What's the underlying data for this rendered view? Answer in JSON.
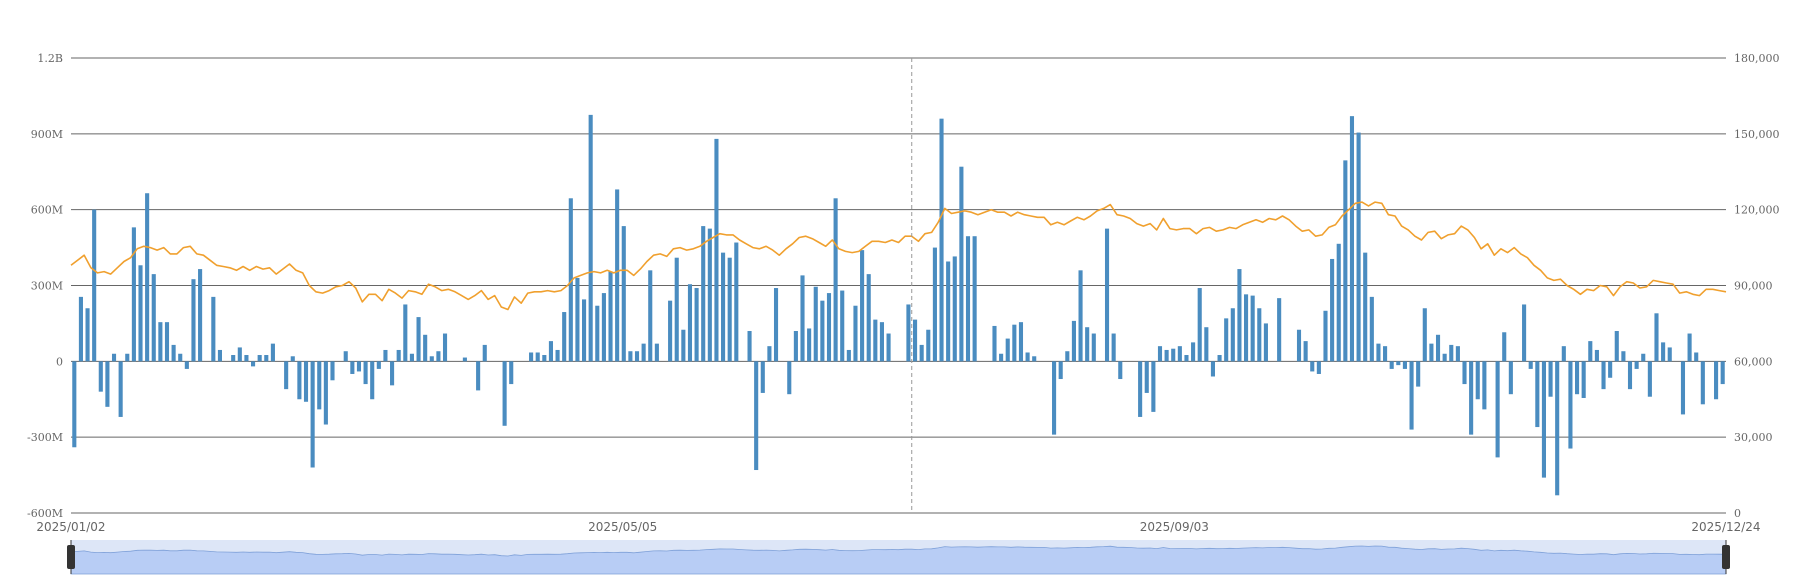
{
  "chart_data": {
    "type": "bar+line",
    "title": "",
    "x_range": [
      "2025/01/02",
      "2025/12/24"
    ],
    "x_tick_labels": [
      "2025/01/02",
      "2025/05/05",
      "2025/09/03",
      "2025/12/24"
    ],
    "y_left": {
      "ticks": [
        1200000000,
        900000000,
        600000000,
        300000000,
        0,
        -300000000,
        -600000000
      ],
      "tick_labels": [
        "1.2B",
        "900M",
        "600M",
        "300M",
        "0",
        "-300M",
        "-600M"
      ],
      "ylim": [
        -600000000,
        1200000000
      ]
    },
    "y_right": {
      "ticks": [
        180000,
        150000,
        120000,
        90000,
        60000,
        30000,
        0
      ],
      "tick_labels": [
        "180,000",
        "150,000",
        "120,000",
        "90,000",
        "60,000",
        "30,000",
        "0"
      ],
      "ylim": [
        0,
        180000
      ]
    },
    "grid": true,
    "legend": "none",
    "crosshair_fraction": 0.508,
    "zoom_range": [
      0,
      1
    ],
    "colors": {
      "bar": "#4a8cc0",
      "line": "#f0a02e",
      "grid": "#666666",
      "zoom_fill": "#b8cdf5",
      "zoom_bg": "#dde6f7",
      "zoom_handle": "#333333"
    },
    "bar_series": {
      "name": "",
      "values_M": [
        -340,
        255,
        210,
        600,
        -120,
        -180,
        30,
        -220,
        30,
        530,
        380,
        665,
        345,
        155,
        155,
        65,
        30,
        -30,
        325,
        365,
        0,
        255,
        45,
        0,
        25,
        55,
        25,
        -20,
        25,
        25,
        70,
        0,
        -110,
        20,
        -150,
        -160,
        -420,
        -190,
        -250,
        -75,
        0,
        40,
        -50,
        -40,
        -90,
        -150,
        -30,
        45,
        -95,
        45,
        225,
        30,
        175,
        105,
        20,
        40,
        110,
        0,
        0,
        15,
        0,
        -115,
        65,
        0,
        0,
        -255,
        -90,
        0,
        0,
        35,
        35,
        25,
        80,
        45,
        195,
        645,
        330,
        245,
        975,
        220,
        270,
        355,
        680,
        535,
        40,
        40,
        70,
        360,
        70,
        0,
        240,
        410,
        125,
        305,
        290,
        535,
        525,
        880,
        430,
        410,
        470,
        0,
        120,
        -430,
        -125,
        60,
        290,
        0,
        -130,
        120,
        340,
        130,
        295,
        240,
        270,
        645,
        280,
        45,
        220,
        440,
        345,
        165,
        155,
        110,
        0,
        0,
        225,
        165,
        65,
        125,
        450,
        960,
        395,
        415,
        770,
        495,
        495,
        0,
        0,
        140,
        30,
        90,
        145,
        155,
        35,
        20,
        0,
        0,
        -290,
        -70,
        40,
        160,
        360,
        135,
        110,
        0,
        525,
        110,
        -70,
        0,
        0,
        -220,
        -125,
        -200,
        60,
        45,
        50,
        60,
        25,
        75,
        290,
        135,
        -60,
        25,
        170,
        210,
        365,
        265,
        260,
        210,
        150,
        0,
        250,
        0,
        0,
        125,
        80,
        -40,
        -50,
        200,
        405,
        465,
        795,
        970,
        905,
        430,
        255,
        70,
        60,
        -30,
        -15,
        -30,
        -270,
        -100,
        210,
        70,
        105,
        30,
        65,
        60,
        -90,
        -290,
        -150,
        -190,
        0,
        -380,
        115,
        -130,
        0,
        225,
        -30,
        -260,
        -460,
        -140,
        -530,
        60,
        -345,
        -130,
        -145,
        80,
        45,
        -110,
        -65,
        120,
        40,
        -110,
        -30,
        30,
        -140,
        190,
        75,
        55,
        0,
        -210,
        110,
        35,
        -170,
        0,
        -150,
        -90
      ]
    },
    "line_series": {
      "name": "",
      "values": [
        98000,
        100000,
        102000,
        97000,
        95000,
        95500,
        94500,
        97000,
        99500,
        101000,
        104500,
        105500,
        105000,
        104000,
        105000,
        102500,
        102500,
        105000,
        105500,
        102500,
        102000,
        100000,
        98000,
        97500,
        97000,
        96000,
        97500,
        96000,
        97500,
        96500,
        97000,
        94500,
        96500,
        98500,
        96000,
        95000,
        90000,
        87500,
        87000,
        88000,
        89500,
        90000,
        91500,
        89000,
        83500,
        86500,
        86500,
        84000,
        88500,
        87000,
        85000,
        88000,
        87500,
        86500,
        90500,
        89500,
        88000,
        88500,
        87500,
        86000,
        84500,
        86000,
        88000,
        84500,
        86000,
        81500,
        80500,
        85500,
        83000,
        87000,
        87500,
        87500,
        88000,
        87500,
        88000,
        90000,
        93000,
        94000,
        95000,
        95500,
        95000,
        96000,
        95000,
        96000,
        96000,
        94000,
        96500,
        99500,
        102000,
        102500,
        101500,
        104500,
        105000,
        104000,
        104500,
        105500,
        107500,
        109000,
        110500,
        110000,
        110000,
        108000,
        106500,
        105000,
        104500,
        105500,
        104000,
        102000,
        104500,
        106500,
        109000,
        109500,
        108500,
        107000,
        105500,
        108000,
        104500,
        103500,
        103000,
        103500,
        105500,
        107500,
        107500,
        107000,
        108000,
        107000,
        109500,
        109500,
        107500,
        110500,
        111000,
        115000,
        120500,
        118500,
        119000,
        119500,
        119000,
        118000,
        119000,
        120000,
        119000,
        119000,
        117500,
        119000,
        118000,
        117500,
        117000,
        117000,
        114000,
        115000,
        114000,
        115500,
        117000,
        116000,
        117500,
        119500,
        120500,
        122000,
        118000,
        117500,
        116500,
        114500,
        113500,
        114500,
        112000,
        116500,
        112500,
        112000,
        112500,
        112500,
        110500,
        112500,
        113000,
        111500,
        112000,
        113000,
        112500,
        114000,
        115000,
        116000,
        115000,
        116500,
        116000,
        117500,
        116000,
        113500,
        111500,
        112000,
        109500,
        110000,
        113000,
        114000,
        117500,
        120000,
        122500,
        123000,
        121500,
        123000,
        122500,
        118000,
        117500,
        113500,
        112000,
        109500,
        108000,
        111000,
        111500,
        108500,
        110000,
        110500,
        113500,
        112000,
        109000,
        104500,
        106500,
        102000,
        104500,
        103000,
        105000,
        102500,
        101000,
        98000,
        96000,
        93000,
        92000,
        92500,
        90000,
        88500,
        86500,
        88500,
        88000,
        90000,
        89500,
        86000,
        89500,
        91500,
        91000,
        89000,
        89500,
        92000,
        91500,
        91000,
        90500,
        87000,
        87500,
        86500,
        86000,
        88500,
        88500,
        88000,
        87500
      ]
    }
  }
}
